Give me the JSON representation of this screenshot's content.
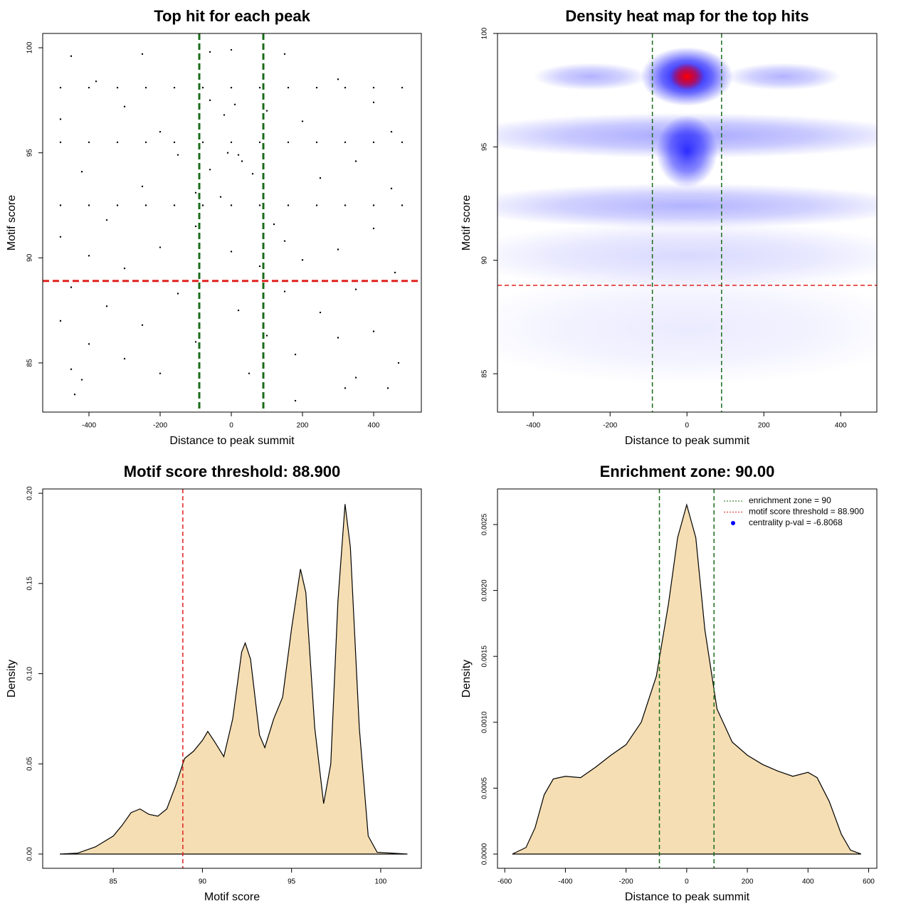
{
  "chart_data": [
    {
      "type": "scatter",
      "title": "Top hit for each peak",
      "xlabel": "Distance to peak summit",
      "ylabel": "Motif score",
      "xlim": [
        -530,
        534
      ],
      "ylim": [
        82.66,
        100.68
      ],
      "xticks": [
        -400,
        -200,
        0,
        200,
        400
      ],
      "yticks": [
        85,
        90,
        95,
        100
      ],
      "color": "#000000",
      "x": [
        -480,
        -400,
        -320,
        -240,
        -160,
        -80,
        0,
        80,
        160,
        240,
        320,
        400,
        480,
        -480,
        -400,
        -320,
        -240,
        -160,
        -80,
        0,
        80,
        160,
        240,
        320,
        400,
        480,
        -480,
        -400,
        -320,
        -240,
        -160,
        -80,
        0,
        80,
        160,
        240,
        320,
        400,
        480,
        -450,
        -250,
        -60,
        0,
        150,
        -380,
        300,
        -300,
        100,
        -20,
        200,
        -480,
        450,
        -150,
        20,
        350,
        -420,
        -60,
        60,
        250,
        -250,
        450,
        -350,
        -100,
        120,
        400,
        -480,
        -200,
        0,
        300,
        -400,
        200,
        -300,
        80,
        460,
        -450,
        -150,
        150,
        350,
        -350,
        20,
        250,
        -480,
        -250,
        100,
        400,
        -400,
        -100,
        300,
        -300,
        180,
        470,
        -450,
        -200,
        50,
        350,
        -420,
        -440,
        180,
        320,
        440,
        -100,
        -30,
        30,
        -10,
        10,
        -60,
        400,
        -200,
        150
      ],
      "y": [
        98.1,
        98.1,
        98.1,
        98.1,
        98.1,
        98.1,
        98.1,
        98.1,
        98.1,
        98.1,
        98.1,
        98.1,
        98.1,
        95.5,
        95.5,
        95.5,
        95.5,
        95.5,
        95.5,
        95.5,
        95.5,
        95.5,
        95.5,
        95.5,
        95.5,
        95.5,
        92.5,
        92.5,
        92.5,
        92.5,
        92.5,
        92.5,
        92.5,
        92.5,
        92.5,
        92.5,
        92.5,
        92.5,
        92.5,
        99.6,
        99.7,
        99.8,
        99.9,
        99.7,
        98.4,
        98.5,
        97.2,
        97.0,
        96.8,
        96.5,
        96.6,
        96.0,
        94.9,
        94.9,
        94.6,
        94.1,
        94.2,
        94.0,
        93.8,
        93.4,
        93.3,
        91.8,
        91.5,
        91.6,
        91.4,
        91.0,
        90.5,
        90.3,
        90.4,
        90.1,
        89.9,
        89.5,
        89.6,
        89.3,
        88.6,
        88.3,
        88.4,
        88.5,
        87.7,
        87.5,
        87.4,
        87.0,
        86.8,
        86.3,
        86.5,
        85.9,
        86.0,
        86.2,
        85.2,
        85.4,
        85.0,
        84.7,
        84.5,
        84.5,
        84.3,
        84.2,
        83.5,
        83.2,
        83.8,
        83.8,
        93.1,
        92.9,
        94.6,
        95.0,
        97.3,
        97.5,
        97.4,
        96.0,
        90.8
      ],
      "vlines": [
        {
          "value": -90,
          "color": "#1a6b1a"
        },
        {
          "value": 90,
          "color": "#1a6b1a"
        }
      ],
      "hlines": [
        {
          "value": 88.9,
          "color": "#e0221f"
        }
      ]
    },
    {
      "type": "heatmap",
      "title": "Density heat map for the top hits",
      "xlabel": "Distance to peak summit",
      "ylabel": "Motif score",
      "xlim": [
        -493,
        494
      ],
      "ylim": [
        83.31,
        100
      ],
      "xticks": [
        -400,
        -200,
        0,
        200,
        400
      ],
      "yticks": [
        85,
        90,
        95,
        100
      ],
      "blobs": [
        {
          "x": 0,
          "y": 87,
          "rx": 600,
          "ry": 2.5,
          "color": "#0000ff",
          "intensity": 0.08
        },
        {
          "x": 0,
          "y": 90.2,
          "rx": 600,
          "ry": 1.5,
          "color": "#0000ff",
          "intensity": 0.15
        },
        {
          "x": 0,
          "y": 92.4,
          "rx": 600,
          "ry": 1.0,
          "color": "#0000ff",
          "intensity": 0.3
        },
        {
          "x": 0,
          "y": 95.5,
          "rx": 600,
          "ry": 1.0,
          "color": "#0000ff",
          "intensity": 0.35
        },
        {
          "x": 0,
          "y": 94.8,
          "rx": 80,
          "ry": 1.6,
          "color": "#0000ff",
          "intensity": 0.8
        },
        {
          "x": -250,
          "y": 98.1,
          "rx": 150,
          "ry": 0.6,
          "color": "#0000ff",
          "intensity": 0.3
        },
        {
          "x": 250,
          "y": 98.1,
          "rx": 150,
          "ry": 0.6,
          "color": "#0000ff",
          "intensity": 0.3
        },
        {
          "x": 0,
          "y": 98.1,
          "rx": 120,
          "ry": 1.3,
          "color": "#0000ff",
          "intensity": 1
        },
        {
          "x": 0,
          "y": 98.1,
          "rx": 45,
          "ry": 0.6,
          "color": "#ff0000",
          "intensity": 1
        }
      ],
      "vlines": [
        {
          "value": -90,
          "color": "#1a6b1a"
        },
        {
          "value": 90,
          "color": "#1a6b1a"
        }
      ],
      "hlines": [
        {
          "value": 88.9,
          "color": "#e0221f"
        }
      ]
    },
    {
      "type": "area",
      "title": "Motif score threshold: 88.900",
      "xlabel": "Motif score",
      "ylabel": "Density",
      "xlim": [
        81.04,
        102.28
      ],
      "ylim": [
        -0.0079,
        0.2024
      ],
      "xticks": [
        85,
        90,
        95,
        100
      ],
      "yticks": [
        {
          "value": 0,
          "label": "0.00"
        },
        0.05,
        {
          "value": 0.1,
          "label": "0.10"
        },
        0.15,
        {
          "value": 0.2,
          "label": "0.20"
        }
      ],
      "color": "#f5deb3",
      "x": [
        82,
        83,
        84,
        84.5,
        85,
        85.5,
        86,
        86.5,
        87,
        87.5,
        88,
        88.5,
        89,
        89.5,
        90,
        90.3,
        90.7,
        91.2,
        91.7,
        92.2,
        92.4,
        92.7,
        93.2,
        93.5,
        94,
        94.5,
        95,
        95.5,
        95.8,
        96.3,
        96.8,
        97.2,
        97.6,
        98,
        98.3,
        98.8,
        99.3,
        99.8,
        101.5
      ],
      "values": [
        0,
        0.0005,
        0.004,
        0.007,
        0.01,
        0.016,
        0.023,
        0.025,
        0.022,
        0.021,
        0.025,
        0.038,
        0.053,
        0.057,
        0.063,
        0.068,
        0.062,
        0.054,
        0.075,
        0.112,
        0.117,
        0.108,
        0.066,
        0.059,
        0.075,
        0.087,
        0.125,
        0.158,
        0.145,
        0.07,
        0.028,
        0.05,
        0.14,
        0.194,
        0.17,
        0.07,
        0.01,
        0.001,
        0
      ],
      "vlines": [
        {
          "value": 88.9,
          "color": "#e0221f"
        }
      ],
      "hlines": []
    },
    {
      "type": "area",
      "title": "Enrichment zone: 90.00",
      "xlabel": "Distance to peak summit",
      "ylabel": "Density",
      "xlim": [
        -624,
        627
      ],
      "ylim": [
        -0.000108,
        0.00277
      ],
      "xticks": [
        -600,
        -400,
        -200,
        0,
        200,
        400,
        600
      ],
      "yticks": [
        {
          "value": 0,
          "label": "0.0000"
        },
        0.0005,
        {
          "value": 0.001,
          "label": "0.0010"
        },
        0.0015,
        {
          "value": 0.002,
          "label": "0.0020"
        },
        0.0025
      ],
      "color": "#f5deb3",
      "x": [
        -575,
        -530,
        -500,
        -470,
        -440,
        -400,
        -350,
        -300,
        -250,
        -200,
        -150,
        -100,
        -60,
        -30,
        0,
        30,
        60,
        100,
        150,
        200,
        250,
        300,
        350,
        400,
        430,
        470,
        510,
        540,
        575
      ],
      "values": [
        0,
        5e-05,
        0.0002,
        0.00045,
        0.00057,
        0.00059,
        0.00058,
        0.00066,
        0.00075,
        0.00083,
        0.001,
        0.00135,
        0.0019,
        0.0024,
        0.00265,
        0.0024,
        0.0017,
        0.0011,
        0.00085,
        0.00075,
        0.00068,
        0.00063,
        0.00059,
        0.00062,
        0.00058,
        0.0004,
        0.00015,
        3e-05,
        0
      ],
      "vlines": [
        {
          "value": -90,
          "color": "#1a6b1a"
        },
        {
          "value": 90,
          "color": "#1a6b1a"
        }
      ],
      "hlines": [],
      "legend": [
        {
          "label": "enrichment zone = 90",
          "color": "#1a6b1a",
          "symbol": "line"
        },
        {
          "label": "motif score threshold = 88.900",
          "color": "#e0221f",
          "symbol": "line"
        },
        {
          "label": "centrality p-val = -6.8068",
          "color": "#0000ff",
          "symbol": "point"
        }
      ]
    }
  ]
}
